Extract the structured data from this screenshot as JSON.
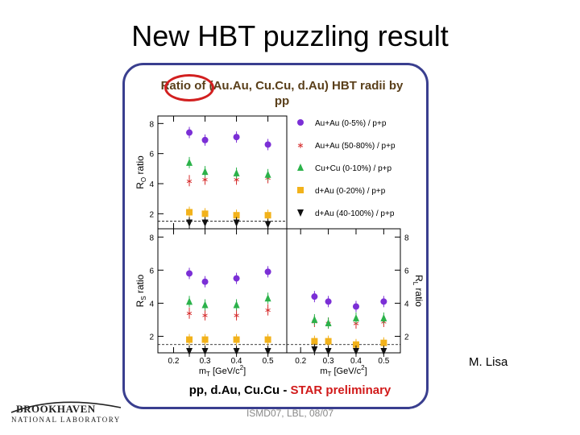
{
  "slide": {
    "title": "New HBT puzzling result",
    "panel_title": "Ratio of (Au.Au, Cu.Cu, d.Au) HBT radii by pp",
    "caption_main": "pp, d.Au, Cu.Cu - ",
    "caption_highlight": "STAR preliminary",
    "author": "M. Lisa",
    "footer": "ISMD07, LBL, 08/07",
    "logo_name": "BROOKHAVEN",
    "logo_sub": "NATIONAL LABORATORY"
  },
  "colors": {
    "frame": "#3a3f8f",
    "highlight_ring": "#d21f1f",
    "preliminary_text": "#d11a1a"
  },
  "chart_data": {
    "type": "scatter",
    "x_tick_labels": [
      "0.2",
      "0.3",
      "0.4",
      "0.5"
    ],
    "y_tick_labels": [
      "2",
      "4",
      "6",
      "8"
    ],
    "reference_line_y": 1.5,
    "series": [
      {
        "name": "Au+Au (0-5%) / p+p",
        "marker": "circle",
        "color": "#7b2fd6"
      },
      {
        "name": "Au+Au (50-80%) / p+p",
        "marker": "star",
        "color": "#d62b2b"
      },
      {
        "name": "Cu+Cu (0-10%) / p+p",
        "marker": "triangle-up",
        "color": "#2bb24a"
      },
      {
        "name": "d+Au (0-20%) / p+p",
        "marker": "square",
        "color": "#f2b21b"
      },
      {
        "name": "d+Au (40-100%) / p+p",
        "marker": "triangle-down",
        "color": "#111111"
      }
    ],
    "panels": [
      {
        "id": "ro",
        "ylabel_main": "R",
        "ylabel_sub": "O",
        "ylabel_rest": " ratio",
        "xlim": [
          0.15,
          0.56
        ],
        "ylim": [
          1.0,
          8.5
        ],
        "show_x_ticks": false,
        "x": [
          0.25,
          0.3,
          0.4,
          0.5
        ],
        "values": {
          "Au+Au (0-5%) / p+p": [
            7.4,
            6.9,
            7.1,
            6.6
          ],
          "Au+Au (50-80%) / p+p": [
            4.2,
            4.3,
            4.3,
            4.4
          ],
          "Cu+Cu (0-10%) / p+p": [
            5.4,
            4.8,
            4.7,
            4.6
          ],
          "d+Au (0-20%) / p+p": [
            2.1,
            2.0,
            1.9,
            1.9
          ],
          "d+Au (40-100%) / p+p": [
            1.4,
            1.4,
            1.4,
            1.3
          ]
        }
      },
      {
        "id": "rs",
        "ylabel_main": "R",
        "ylabel_sub": "S",
        "ylabel_rest": " ratio",
        "xlim": [
          0.15,
          0.56
        ],
        "ylim": [
          1.0,
          8.5
        ],
        "show_x_ticks": true,
        "xlabel_main": "m",
        "xlabel_sub": "T",
        "xlabel_rest": " [GeV/c",
        "xlabel_sup": "2",
        "xlabel_end": "]",
        "x": [
          0.25,
          0.3,
          0.4,
          0.5
        ],
        "values": {
          "Au+Au (0-5%) / p+p": [
            5.8,
            5.3,
            5.5,
            5.9
          ],
          "Au+Au (50-80%) / p+p": [
            3.4,
            3.3,
            3.3,
            3.6
          ],
          "Cu+Cu (0-10%) / p+p": [
            4.1,
            3.9,
            3.9,
            4.3
          ],
          "d+Au (0-20%) / p+p": [
            1.8,
            1.8,
            1.8,
            1.8
          ],
          "d+Au (40-100%) / p+p": [
            1.1,
            1.1,
            1.1,
            1.1
          ]
        }
      },
      {
        "id": "rl",
        "ylabel_main": "R",
        "ylabel_sub": "L",
        "ylabel_rest": " ratio",
        "xlim": [
          0.15,
          0.56
        ],
        "ylim": [
          1.0,
          8.5
        ],
        "show_x_ticks": true,
        "xlabel_main": "m",
        "xlabel_sub": "T",
        "xlabel_rest": " [GeV/c",
        "xlabel_sup": "2",
        "xlabel_end": "]",
        "x": [
          0.25,
          0.3,
          0.4,
          0.5
        ],
        "values": {
          "Au+Au (0-5%) / p+p": [
            4.4,
            4.1,
            3.8,
            4.1
          ],
          "Au+Au (50-80%) / p+p": [
            2.9,
            2.8,
            2.8,
            2.9
          ],
          "Cu+Cu (0-10%) / p+p": [
            3.0,
            2.8,
            3.1,
            3.1
          ],
          "d+Au (0-20%) / p+p": [
            1.7,
            1.7,
            1.5,
            1.6
          ],
          "d+Au (40-100%) / p+p": [
            1.2,
            1.1,
            1.1,
            1.1
          ]
        }
      }
    ]
  }
}
